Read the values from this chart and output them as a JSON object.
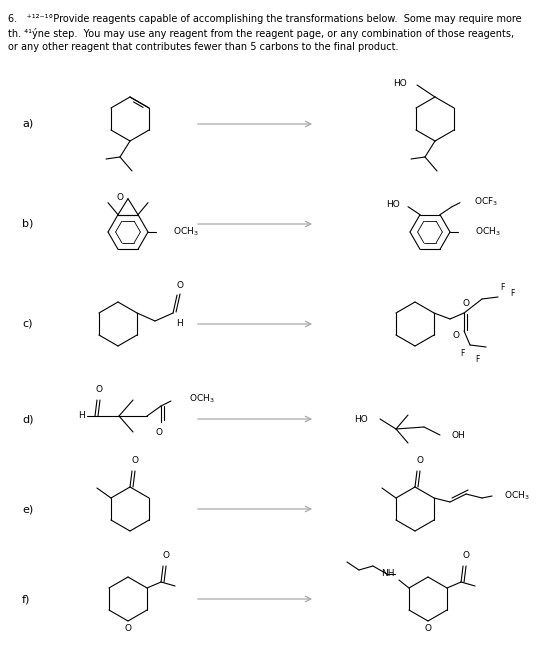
{
  "title_line1": "6.   ⁺¹²⁻¹°Provide reagents capable of accomplishing the transformations below.  Some may require more",
  "title_line2": "th. ⁴¹ýne step.  You may use any reagent from the reagent page, or any combination of those reagents,",
  "title_line3": "or any other reagent that contributes fewer than 5 carbons to the final product.",
  "labels": [
    "a)",
    "b)",
    "c)",
    "d)",
    "e)",
    "f)"
  ],
  "bg_color": "#ffffff",
  "text_color": "#000000",
  "arrow_color": "#aaaaaa",
  "fontsize_title": 7.0,
  "fontsize_label": 8.0,
  "fontsize_mol": 6.5,
  "fontsize_sub": 6.0
}
